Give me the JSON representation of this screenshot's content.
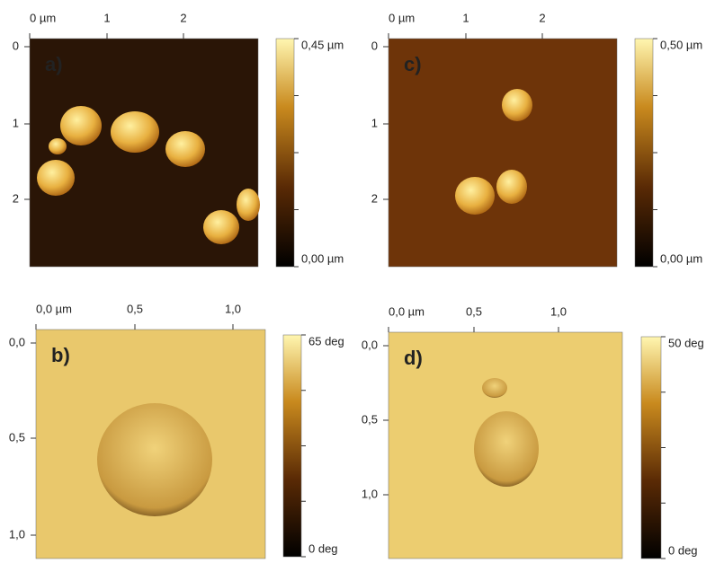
{
  "panels": [
    {
      "label": "a)",
      "x_ticks": [
        "0 µm",
        "1",
        "2"
      ],
      "y_ticks": [
        "0",
        "1",
        "2"
      ],
      "scale": [
        "0,45 µm",
        "0,00 µm"
      ]
    },
    {
      "label": "b)",
      "x_ticks": [
        "0,0 µm",
        "0,5",
        "1,0"
      ],
      "y_ticks": [
        "0,0",
        "0,5",
        "1,0"
      ],
      "scale": [
        "65 deg",
        "0 deg"
      ]
    },
    {
      "label": "c)",
      "x_ticks": [
        "0 µm",
        "1",
        "2"
      ],
      "y_ticks": [
        "0",
        "1",
        "2"
      ],
      "scale": [
        "0,50 µm",
        "0,00 µm"
      ]
    },
    {
      "label": "d)",
      "x_ticks": [
        "0,0 µm",
        "0,5",
        "1,0"
      ],
      "y_ticks": [
        "0,0",
        "0,5",
        "1,0"
      ],
      "scale": [
        "50 deg",
        "0 deg"
      ]
    }
  ]
}
